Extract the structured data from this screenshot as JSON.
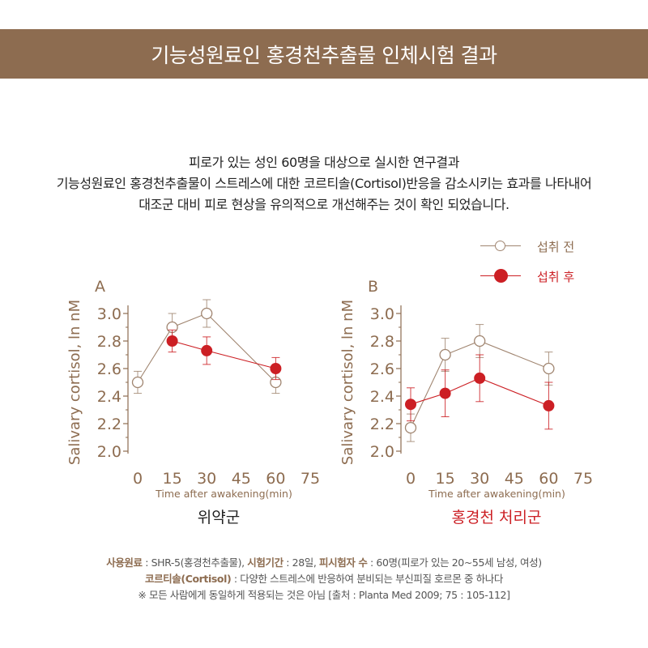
{
  "header": {
    "title": "기능성원료인 홍경천추출물 인체시험 결과"
  },
  "intro": {
    "line1": "피로가 있는 성인 60명을 대상으로 실시한 연구결과",
    "line2": "기능성원료인 홍경천추출물이 스트레스에 대한 코르티솔(Cortisol)반응을 감소시키는 효과를 나타내어",
    "line3": "대조군 대비 피로 현상을 유의적으로 개선해주는 것이 확인 되었습니다."
  },
  "legend": {
    "before": "섭취 전",
    "after": "섭취 후"
  },
  "colors": {
    "banner": "#8d6c50",
    "axis": "#8d6c50",
    "before_series": "#a08570",
    "after_series": "#cc1f24",
    "after_caption": "#cc1f24"
  },
  "chart_data": [
    {
      "type": "line",
      "panel": "A",
      "caption": "위약군",
      "xlabel": "Time after awakening(min)",
      "ylabel": "Salivary cortisol, ln nM",
      "x_ticks": [
        "0",
        "15",
        "30",
        "45",
        "60",
        "75"
      ],
      "y_ticks": [
        "2.0",
        "2.2",
        "2.4",
        "2.6",
        "2.8",
        "3.0"
      ],
      "xlim": [
        0,
        75
      ],
      "ylim": [
        2.0,
        3.0
      ],
      "series": [
        {
          "name": "섭취 전",
          "marker": "open",
          "x": [
            0,
            15,
            30,
            60
          ],
          "values": [
            2.5,
            2.9,
            3.0,
            2.5
          ],
          "err": [
            0.08,
            0.1,
            0.1,
            0.08
          ]
        },
        {
          "name": "섭취 후",
          "marker": "filled",
          "x": [
            15,
            30,
            60
          ],
          "values": [
            2.8,
            2.73,
            2.6
          ],
          "err": [
            0.08,
            0.1,
            0.08
          ]
        }
      ]
    },
    {
      "type": "line",
      "panel": "B",
      "caption": "홍경천 처리군",
      "xlabel": "Time after awakening(min)",
      "ylabel": "Salivary cortisol, ln nM",
      "x_ticks": [
        "0",
        "15",
        "30",
        "45",
        "60",
        "75"
      ],
      "y_ticks": [
        "2.0",
        "2.2",
        "2.4",
        "2.6",
        "2.8",
        "3.0"
      ],
      "xlim": [
        0,
        75
      ],
      "ylim": [
        2.0,
        3.0
      ],
      "series": [
        {
          "name": "섭취 전",
          "marker": "open",
          "x": [
            0,
            15,
            30,
            60
          ],
          "values": [
            2.17,
            2.7,
            2.8,
            2.6
          ],
          "err": [
            0.1,
            0.12,
            0.12,
            0.12
          ]
        },
        {
          "name": "섭취 후",
          "marker": "filled",
          "x": [
            0,
            15,
            30,
            60
          ],
          "values": [
            2.34,
            2.42,
            2.53,
            2.33
          ],
          "err": [
            0.12,
            0.17,
            0.17,
            0.17
          ]
        }
      ]
    }
  ],
  "footer": {
    "material_label": "사용원료",
    "material_value": " : SHR-5(홍경천추출물),",
    "period_label": "시험기간",
    "period_value": " : 28일,",
    "subjects_label": "피시험자 수",
    "subjects_value": " : 60명(피로가 있는 20~55세 남성, 여성)",
    "cortisol_label": "코르티솔(Cortisol)",
    "cortisol_value": " : 다양한 스트레스에 반응하여 분비되는 부신피질 호르몬 중 하나다",
    "note": "※ 모든 사람에게 동일하게 적용되는 것은 아님  [출처 : Planta Med 2009; 75 : 105-112]"
  }
}
